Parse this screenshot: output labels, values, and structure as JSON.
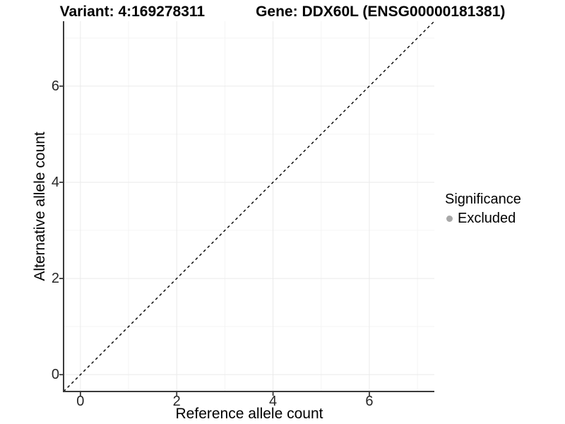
{
  "header": {
    "variant_title": "Variant: 4:169278311",
    "gene_title": "Gene: DDX60L (ENSG00000181381)"
  },
  "chart_data": {
    "type": "scatter",
    "title": "Variant: 4:169278311    Gene: DDX60L (ENSG00000181381)",
    "xlabel": "Reference allele count",
    "ylabel": "Alternative allele count",
    "xlim": [
      -0.35,
      7.35
    ],
    "ylim": [
      -0.35,
      7.35
    ],
    "xticks": [
      0,
      2,
      4,
      6
    ],
    "yticks": [
      0,
      2,
      4,
      6
    ],
    "minor_xticks": [
      1,
      3,
      5,
      7
    ],
    "minor_yticks": [
      1,
      3,
      5,
      7
    ],
    "grid": "major and minor gridlines on white background",
    "points": [],
    "reference_line": {
      "type": "identity",
      "from": [
        -0.35,
        -0.35
      ],
      "to": [
        7.35,
        7.35
      ],
      "style": "dashed",
      "color": "#000000"
    },
    "legend": {
      "title": "Significance",
      "position": "right",
      "items": [
        {
          "label": "Excluded",
          "color": "#A8A8A8",
          "marker": "circle"
        }
      ]
    }
  },
  "colors": {
    "background": "#FFFFFF",
    "axis_line": "#3A3A3A",
    "tick_label": "#262626",
    "grid_major": "#EAEAEA",
    "grid_minor": "#F4F4F4",
    "identity_line": "#000000",
    "excluded_point": "#A8A8A8"
  }
}
